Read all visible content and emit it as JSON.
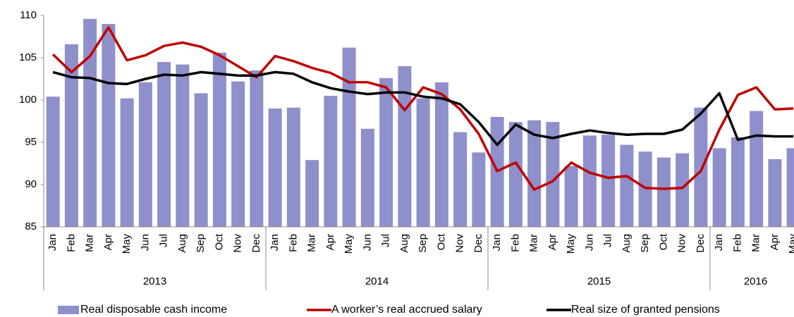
{
  "chart_data": {
    "type": "bar_line",
    "categories": [
      "Jan",
      "Feb",
      "Mar",
      "Apr",
      "May",
      "Jun",
      "Jul",
      "Aug",
      "Sep",
      "Oct",
      "Nov",
      "Dec",
      "Jan",
      "Feb",
      "Mar",
      "Apr",
      "May",
      "Jun",
      "Jul",
      "Aug",
      "Sep",
      "Oct",
      "Nov",
      "Dec",
      "Jan",
      "Feb",
      "Mar",
      "Apr",
      "May",
      "Jun",
      "Jul",
      "Aug",
      "Sep",
      "Oct",
      "Nov",
      "Dec",
      "Jan",
      "Feb",
      "Mar",
      "Apr",
      "May"
    ],
    "years": [
      "2013",
      "2014",
      "2015",
      "2016"
    ],
    "series": [
      {
        "name": "Real disposable cash income",
        "type": "bar",
        "color": "#8e8fcb",
        "values": [
          100.4,
          106.6,
          109.6,
          109.0,
          100.2,
          102.1,
          104.5,
          104.2,
          100.8,
          105.6,
          102.2,
          103.5,
          99.0,
          99.1,
          92.9,
          100.5,
          106.2,
          96.6,
          102.6,
          104.0,
          100.2,
          102.1,
          96.2,
          93.8,
          98.0,
          97.4,
          97.6,
          97.4,
          92.2,
          95.8,
          95.9,
          94.7,
          93.9,
          93.2,
          93.7,
          99.1,
          94.3,
          95.6,
          98.7,
          93.0,
          94.3
        ]
      },
      {
        "name": "A worker’s real accrued salary",
        "type": "line",
        "color": "#c00000",
        "values": [
          105.4,
          103.3,
          105.2,
          108.6,
          104.7,
          105.3,
          106.4,
          106.8,
          106.3,
          105.3,
          104.0,
          102.7,
          105.2,
          104.6,
          103.8,
          103.2,
          102.1,
          102.1,
          101.5,
          98.8,
          101.5,
          100.7,
          98.9,
          96.0,
          91.6,
          92.6,
          89.4,
          90.4,
          92.6,
          91.4,
          90.8,
          91.0,
          89.6,
          89.5,
          89.6,
          91.6,
          96.5,
          100.6,
          101.5,
          98.9,
          99.0
        ]
      },
      {
        "name": "Real size of granted pensions",
        "type": "line",
        "color": "#000000",
        "values": [
          103.3,
          102.7,
          102.6,
          102.0,
          101.9,
          102.5,
          103.0,
          102.9,
          103.3,
          103.1,
          102.9,
          102.9,
          103.3,
          103.1,
          102.1,
          101.4,
          101.0,
          100.7,
          100.9,
          100.9,
          100.4,
          100.2,
          99.5,
          97.4,
          94.7,
          97.1,
          95.9,
          95.5,
          96.0,
          96.4,
          96.1,
          95.9,
          96.0,
          96.0,
          96.5,
          98.4,
          100.8,
          95.3,
          95.8,
          95.7,
          95.7
        ]
      }
    ],
    "ylim": [
      85,
      110
    ],
    "yticks": [
      85,
      90,
      95,
      100,
      105,
      110
    ],
    "grid": false,
    "legend": "bottom"
  }
}
